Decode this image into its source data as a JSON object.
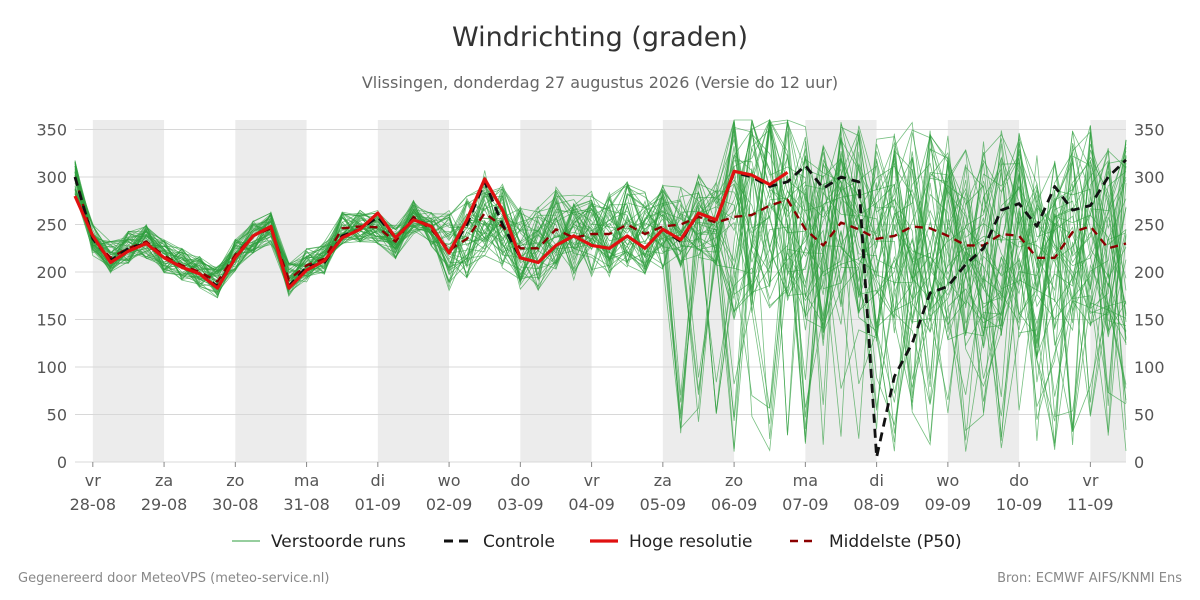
{
  "header": {
    "title": "Windrichting (graden)",
    "subtitle": "Vlissingen, donderdag 27 augustus 2026 (Versie do 12 uur)"
  },
  "footer": {
    "left": "Gegenereerd door MeteoVPS (meteo-service.nl)",
    "right": "Bron: ECMWF AIFS/KNMI Ens"
  },
  "colors": {
    "ensemble": "#2e9e3e",
    "control": "#111111",
    "highres": "#e01010",
    "median": "#8b0000",
    "weekend_band": "#ececec",
    "grid": "#d8d8d8"
  },
  "chart_data": {
    "type": "line",
    "ylim": [
      0,
      360
    ],
    "xlim": [
      -0.25,
      14.5
    ],
    "yticks": [
      0,
      50,
      100,
      150,
      200,
      250,
      300,
      350
    ],
    "grid": true,
    "legend_position": "bottom",
    "x_ticks": [
      {
        "day": "vr",
        "date": "28-08"
      },
      {
        "day": "za",
        "date": "29-08"
      },
      {
        "day": "zo",
        "date": "30-08"
      },
      {
        "day": "ma",
        "date": "31-08"
      },
      {
        "day": "di",
        "date": "01-09"
      },
      {
        "day": "wo",
        "date": "02-09"
      },
      {
        "day": "do",
        "date": "03-09"
      },
      {
        "day": "vr",
        "date": "04-09"
      },
      {
        "day": "za",
        "date": "05-09"
      },
      {
        "day": "zo",
        "date": "06-09"
      },
      {
        "day": "ma",
        "date": "07-09"
      },
      {
        "day": "di",
        "date": "08-09"
      },
      {
        "day": "wo",
        "date": "09-09"
      },
      {
        "day": "do",
        "date": "10-09"
      },
      {
        "day": "vr",
        "date": "11-09"
      }
    ],
    "shaded_days": [
      0,
      2,
      4,
      6,
      8,
      10,
      12,
      14
    ],
    "ensemble_member_count": 50,
    "series": [
      {
        "name": "Controle",
        "x": [
          -0.25,
          0,
          0.25,
          0.5,
          0.75,
          1,
          1.25,
          1.5,
          1.75,
          2,
          2.25,
          2.5,
          2.75,
          3,
          3.25,
          3.5,
          3.75,
          4,
          4.25,
          4.5,
          4.75,
          5,
          5.25,
          5.5,
          5.75,
          6,
          6.25,
          6.5,
          6.75,
          7,
          7.25,
          7.5,
          7.75,
          8,
          8.25,
          8.5,
          8.75,
          9,
          9.25,
          9.5,
          9.75,
          10,
          10.25,
          10.5,
          10.75,
          11,
          11.25,
          11.5,
          11.75,
          12,
          12.25,
          12.5,
          12.75,
          13,
          13.25,
          13.5,
          13.75,
          14,
          14.25,
          14.5
        ],
        "values": [
          300,
          235,
          212,
          225,
          230,
          215,
          205,
          198,
          185,
          215,
          238,
          248,
          185,
          205,
          210,
          238,
          245,
          258,
          236,
          256,
          248,
          220,
          250,
          295,
          250,
          215,
          210,
          228,
          238,
          228,
          225,
          238,
          225,
          245,
          232,
          262,
          255,
          305,
          300,
          290,
          295,
          312,
          288,
          300,
          295,
          5,
          90,
          125,
          178,
          185,
          208,
          225,
          265,
          272,
          248,
          290,
          265,
          270,
          300,
          318
        ]
      },
      {
        "name": "Hoge resolutie",
        "x": [
          -0.25,
          0,
          0.25,
          0.5,
          0.75,
          1,
          1.25,
          1.5,
          1.75,
          2,
          2.25,
          2.5,
          2.75,
          3,
          3.25,
          3.5,
          3.75,
          4,
          4.25,
          4.5,
          4.75,
          5,
          5.25,
          5.5,
          5.75,
          6,
          6.25,
          6.5,
          6.75,
          7,
          7.25,
          7.5,
          7.75,
          8,
          8.25,
          8.5,
          8.75,
          9,
          9.25,
          9.5,
          9.75
        ],
        "values": [
          280,
          238,
          210,
          222,
          230,
          215,
          205,
          198,
          183,
          215,
          238,
          248,
          183,
          202,
          212,
          236,
          245,
          262,
          236,
          255,
          248,
          220,
          255,
          298,
          265,
          215,
          210,
          228,
          238,
          228,
          225,
          238,
          225,
          245,
          234,
          262,
          255,
          306,
          302,
          292,
          305
        ]
      },
      {
        "name": "Middelste (P50)",
        "x": [
          -0.25,
          0,
          0.25,
          0.5,
          0.75,
          1,
          1.25,
          1.5,
          1.75,
          2,
          2.25,
          2.5,
          2.75,
          3,
          3.25,
          3.5,
          3.75,
          4,
          4.25,
          4.5,
          4.75,
          5,
          5.25,
          5.5,
          5.75,
          6,
          6.25,
          6.5,
          6.75,
          7,
          7.25,
          7.5,
          7.75,
          8,
          8.25,
          8.5,
          8.75,
          9,
          9.25,
          9.5,
          9.75,
          10,
          10.25,
          10.5,
          10.75,
          11,
          11.25,
          11.5,
          11.75,
          12,
          12.25,
          12.5,
          12.75,
          13,
          13.25,
          13.5,
          13.75,
          14,
          14.25,
          14.5
        ],
        "values": [
          300,
          235,
          215,
          225,
          232,
          217,
          207,
          200,
          190,
          218,
          238,
          246,
          192,
          207,
          214,
          246,
          248,
          247,
          232,
          258,
          245,
          223,
          235,
          262,
          248,
          225,
          225,
          245,
          236,
          240,
          240,
          250,
          240,
          248,
          250,
          258,
          252,
          258,
          260,
          270,
          276,
          245,
          228,
          252,
          245,
          235,
          238,
          248,
          246,
          238,
          228,
          228,
          240,
          238,
          215,
          215,
          242,
          248,
          225,
          230
        ]
      }
    ]
  },
  "legend": [
    {
      "key": "ens",
      "label": "Verstoorde runs"
    },
    {
      "key": "ctrl",
      "label": "Controle"
    },
    {
      "key": "hres",
      "label": "Hoge resolutie"
    },
    {
      "key": "p50",
      "label": "Middelste (P50)"
    }
  ]
}
